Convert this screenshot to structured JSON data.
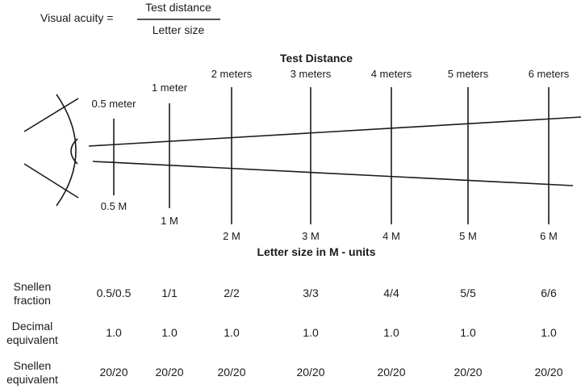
{
  "formula": {
    "lhs": "Visual acuity =",
    "numerator": "Test distance",
    "denominator": "Letter size"
  },
  "top_title": "Test Distance",
  "bottom_title": "Letter size in M - units",
  "columns": [
    {
      "distance": "0.5 meter",
      "letter": "0.5 M",
      "snellen": "0.5/0.5",
      "decimal": "1.0",
      "snellen_eq": "20/20"
    },
    {
      "distance": "1 meter",
      "letter": "1 M",
      "snellen": "1/1",
      "decimal": "1.0",
      "snellen_eq": "20/20"
    },
    {
      "distance": "2 meters",
      "letter": "2 M",
      "snellen": "2/2",
      "decimal": "1.0",
      "snellen_eq": "20/20"
    },
    {
      "distance": "3 meters",
      "letter": "3 M",
      "snellen": "3/3",
      "decimal": "1.0",
      "snellen_eq": "20/20"
    },
    {
      "distance": "4 meters",
      "letter": "4 M",
      "snellen": "4/4",
      "decimal": "1.0",
      "snellen_eq": "20/20"
    },
    {
      "distance": "5 meters",
      "letter": "5 M",
      "snellen": "5/5",
      "decimal": "1.0",
      "snellen_eq": "20/20"
    },
    {
      "distance": "6 meters",
      "letter": "6 M",
      "snellen": "6/6",
      "decimal": "1.0",
      "snellen_eq": "20/20"
    }
  ],
  "rows": [
    {
      "label1": "Snellen",
      "label2": "fraction"
    },
    {
      "label1": "Decimal",
      "label2": "equivalent"
    },
    {
      "label1": "Snellen",
      "label2": "equivalent"
    }
  ]
}
